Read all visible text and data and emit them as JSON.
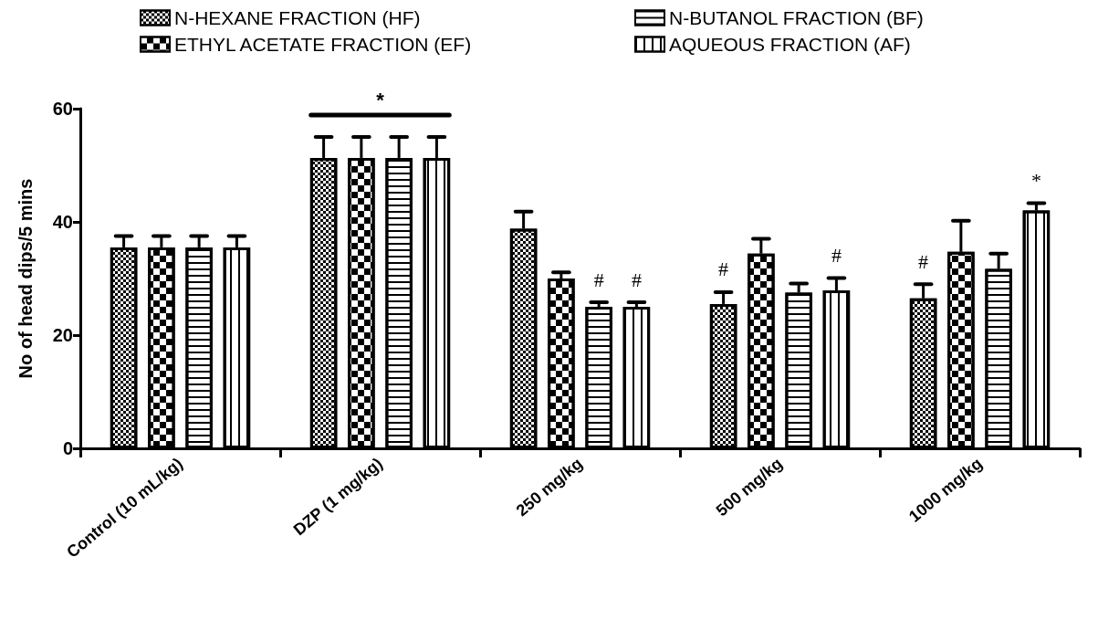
{
  "chart_data": {
    "type": "bar",
    "ylabel": "No of head dips/5 mins",
    "categories": [
      "Control (10 mL/kg)",
      "DZP (1 mg/kg)",
      "250 mg/kg",
      "500 mg/kg",
      "1000 mg/kg"
    ],
    "series": [
      {
        "name": "N-HEXANE FRACTION (HF)",
        "color": "#ffffff",
        "values": [
          35.5,
          51.3,
          38.8,
          25.5,
          26.5
        ],
        "errors": [
          2,
          3.7,
          3,
          2.1,
          2.5
        ],
        "value_labels": [
          null,
          null,
          null,
          "#",
          "#"
        ]
      },
      {
        "name": "ETHYL ACETATE FRACTION (EF)",
        "color": "#ffffff",
        "values": [
          35.5,
          51.3,
          30.0,
          34.4,
          34.7
        ],
        "errors": [
          2,
          3.7,
          1.1,
          2.6,
          5.5
        ]
      },
      {
        "name": "N-BUTANOL FRACTION (BF)",
        "color": "#ffffff",
        "values": [
          35.5,
          51.3,
          25.0,
          27.5,
          31.7
        ],
        "errors": [
          2,
          3.7,
          0.8,
          1.6,
          2.7
        ],
        "value_labels": [
          null,
          null,
          "#",
          null,
          null
        ]
      },
      {
        "name": "AQUEOUS FRACTION (AF)",
        "color": "#ffffff",
        "values": [
          35.5,
          51.3,
          25.0,
          27.9,
          42.0
        ],
        "errors": [
          2,
          3.7,
          0.8,
          2.2,
          1.3
        ],
        "value_labels": [
          null,
          null,
          "#",
          "#",
          "*"
        ]
      }
    ],
    "annotations": [
      "*"
    ],
    "ylim": [
      0,
      60
    ],
    "yticks": [
      0,
      20,
      40,
      60
    ],
    "grid": false,
    "legend": "top"
  }
}
